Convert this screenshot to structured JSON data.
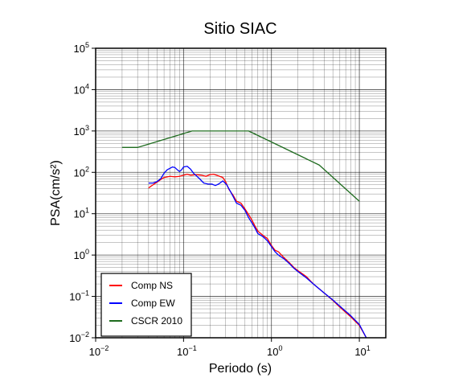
{
  "chart_data": {
    "type": "line",
    "title": "Sitio SIAC",
    "xlabel": "Periodo (s)",
    "ylabel": "PSA(cm/s²)",
    "x_scale": "log",
    "y_scale": "log",
    "xlim": [
      0.01,
      20
    ],
    "ylim": [
      0.01,
      100000
    ],
    "grid": true,
    "legend_placement": "bottom-left",
    "x_ticks": [
      {
        "value": 0.01,
        "mantissa": "10",
        "exp": "−2"
      },
      {
        "value": 0.1,
        "mantissa": "10",
        "exp": "−1"
      },
      {
        "value": 1,
        "mantissa": "10",
        "exp": "0"
      },
      {
        "value": 10,
        "mantissa": "10",
        "exp": "1"
      }
    ],
    "y_ticks": [
      {
        "value": 0.01,
        "mantissa": "10",
        "exp": "−2"
      },
      {
        "value": 0.1,
        "mantissa": "10",
        "exp": "−1"
      },
      {
        "value": 1,
        "mantissa": "10",
        "exp": "0"
      },
      {
        "value": 10,
        "mantissa": "10",
        "exp": "1"
      },
      {
        "value": 100,
        "mantissa": "10",
        "exp": "2"
      },
      {
        "value": 1000,
        "mantissa": "10",
        "exp": "3"
      },
      {
        "value": 10000,
        "mantissa": "10",
        "exp": "4"
      },
      {
        "value": 100000,
        "mantissa": "10",
        "exp": "5"
      }
    ],
    "series": [
      {
        "name": "Comp NS",
        "color": "#ff0000",
        "points": [
          [
            0.04,
            42
          ],
          [
            0.045,
            50
          ],
          [
            0.05,
            58
          ],
          [
            0.055,
            67
          ],
          [
            0.06,
            75
          ],
          [
            0.07,
            80
          ],
          [
            0.08,
            78
          ],
          [
            0.09,
            80
          ],
          [
            0.1,
            85
          ],
          [
            0.11,
            90
          ],
          [
            0.12,
            85
          ],
          [
            0.14,
            88
          ],
          [
            0.16,
            85
          ],
          [
            0.18,
            80
          ],
          [
            0.2,
            88
          ],
          [
            0.22,
            90
          ],
          [
            0.25,
            82
          ],
          [
            0.28,
            75
          ],
          [
            0.3,
            60
          ],
          [
            0.33,
            38
          ],
          [
            0.37,
            27
          ],
          [
            0.4,
            20
          ],
          [
            0.45,
            18
          ],
          [
            0.5,
            13
          ],
          [
            0.55,
            9.5
          ],
          [
            0.6,
            7
          ],
          [
            0.65,
            5
          ],
          [
            0.7,
            3.8
          ],
          [
            0.8,
            3
          ],
          [
            0.9,
            2.5
          ],
          [
            1.0,
            1.7
          ],
          [
            1.1,
            1.3
          ],
          [
            1.2,
            1.2
          ],
          [
            1.4,
            0.85
          ],
          [
            1.6,
            0.65
          ],
          [
            1.8,
            0.5
          ],
          [
            2.0,
            0.42
          ],
          [
            2.5,
            0.3
          ],
          [
            3.0,
            0.2
          ],
          [
            4.0,
            0.12
          ],
          [
            5.0,
            0.08
          ],
          [
            6.0,
            0.055
          ],
          [
            8.0,
            0.032
          ],
          [
            10.0,
            0.02
          ],
          [
            12.0,
            0.01
          ]
        ]
      },
      {
        "name": "Comp EW",
        "color": "#0000ff",
        "points": [
          [
            0.04,
            55
          ],
          [
            0.045,
            55
          ],
          [
            0.05,
            60
          ],
          [
            0.055,
            70
          ],
          [
            0.06,
            95
          ],
          [
            0.065,
            115
          ],
          [
            0.07,
            125
          ],
          [
            0.075,
            135
          ],
          [
            0.08,
            130
          ],
          [
            0.085,
            115
          ],
          [
            0.09,
            105
          ],
          [
            0.095,
            115
          ],
          [
            0.1,
            135
          ],
          [
            0.11,
            140
          ],
          [
            0.12,
            120
          ],
          [
            0.13,
            95
          ],
          [
            0.15,
            72
          ],
          [
            0.17,
            55
          ],
          [
            0.19,
            52
          ],
          [
            0.21,
            52
          ],
          [
            0.23,
            48
          ],
          [
            0.25,
            52
          ],
          [
            0.28,
            62
          ],
          [
            0.31,
            50
          ],
          [
            0.34,
            35
          ],
          [
            0.37,
            25
          ],
          [
            0.4,
            18
          ],
          [
            0.45,
            16
          ],
          [
            0.5,
            12
          ],
          [
            0.55,
            8
          ],
          [
            0.6,
            6
          ],
          [
            0.65,
            4.5
          ],
          [
            0.7,
            3.3
          ],
          [
            0.8,
            2.8
          ],
          [
            0.9,
            2.2
          ],
          [
            1.0,
            1.6
          ],
          [
            1.1,
            1.2
          ],
          [
            1.2,
            1.0
          ],
          [
            1.4,
            0.8
          ],
          [
            1.6,
            0.62
          ],
          [
            1.8,
            0.48
          ],
          [
            2.0,
            0.4
          ],
          [
            2.5,
            0.28
          ],
          [
            3.0,
            0.2
          ],
          [
            4.0,
            0.12
          ],
          [
            5.0,
            0.082
          ],
          [
            6.0,
            0.058
          ],
          [
            8.0,
            0.034
          ],
          [
            10.0,
            0.021
          ],
          [
            12.0,
            0.01
          ]
        ]
      },
      {
        "name": "CSCR 2010",
        "color": "#1f6b1f",
        "points": [
          [
            0.02,
            400
          ],
          [
            0.03,
            400
          ],
          [
            0.125,
            1000
          ],
          [
            0.55,
            1000
          ],
          [
            3.5,
            150
          ],
          [
            10,
            20
          ]
        ]
      }
    ]
  }
}
